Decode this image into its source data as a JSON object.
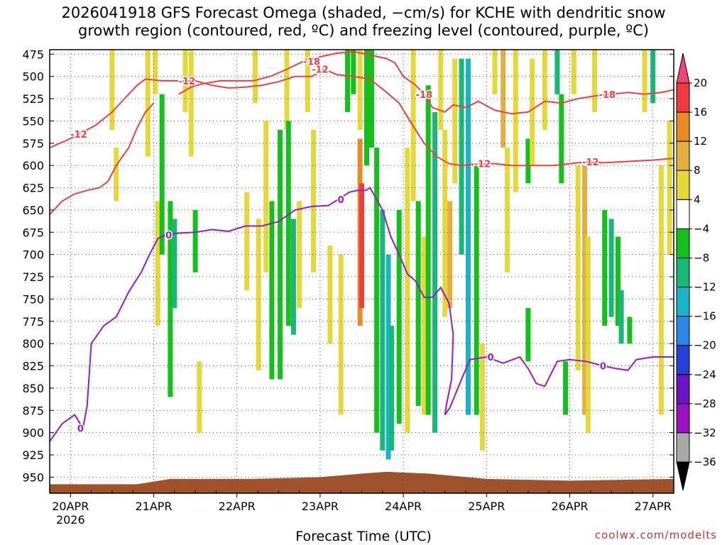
{
  "chart_data": {
    "type": "heatmap",
    "title_line1": "2026041918 GFS Forecast Omega (shaded, −cm/s) for KCHE with dendritic snow",
    "title_line2": "growth region (contoured, red, ºC) and freezing level (contoured, purple, ºC)",
    "xlabel": "Forecast Time (UTC)",
    "credit": "coolwx.com/modelts",
    "x_ticks": [
      {
        "label": "20APR",
        "sub": "2026",
        "day": 0
      },
      {
        "label": "21APR",
        "day": 1
      },
      {
        "label": "22APR",
        "day": 2
      },
      {
        "label": "23APR",
        "day": 3
      },
      {
        "label": "24APR",
        "day": 4
      },
      {
        "label": "25APR",
        "day": 5
      },
      {
        "label": "26APR",
        "day": 6
      },
      {
        "label": "27APR",
        "day": 7
      }
    ],
    "x_range_days": [
      -0.25,
      7.25
    ],
    "y_ticks": [
      475,
      500,
      525,
      550,
      575,
      600,
      625,
      650,
      675,
      700,
      725,
      750,
      775,
      800,
      825,
      850,
      875,
      900,
      925,
      950
    ],
    "y_range_hpa": [
      470,
      968
    ],
    "grid": true,
    "colorbar": {
      "labels": [
        "20",
        "16",
        "12",
        "8",
        "4",
        "−4",
        "−8",
        "−12",
        "−16",
        "−20",
        "−24",
        "−28",
        "−32",
        "−36"
      ],
      "colors": [
        "#f0447a",
        "#ee3c3c",
        "#e98a24",
        "#e3b040",
        "#e5d83a",
        "#ffffff",
        "#12c21a",
        "#18b878",
        "#1ab4c8",
        "#2a86e8",
        "#2442d8",
        "#6a14c8",
        "#9812c0",
        "#a8a8a8",
        "#000000"
      ]
    },
    "omega_regions": [
      {
        "t": 0.5,
        "p": [
          470,
          560
        ],
        "v": 5
      },
      {
        "t": 0.55,
        "p": [
          580,
          640
        ],
        "v": 5
      },
      {
        "t": 0.93,
        "p": [
          470,
          590
        ],
        "v": 5
      },
      {
        "t": 1.02,
        "p": [
          470,
          520
        ],
        "v": 6
      },
      {
        "t": 1.05,
        "p": [
          640,
          780
        ],
        "v": 5
      },
      {
        "t": 1.1,
        "p": [
          520,
          700
        ],
        "v": -6
      },
      {
        "t": 1.2,
        "p": [
          640,
          860
        ],
        "v": -7
      },
      {
        "t": 1.25,
        "p": [
          660,
          760
        ],
        "v": -9
      },
      {
        "t": 1.38,
        "p": [
          470,
          540
        ],
        "v": 5
      },
      {
        "t": 1.45,
        "p": [
          470,
          590
        ],
        "v": 6
      },
      {
        "t": 1.5,
        "p": [
          650,
          720
        ],
        "v": -6
      },
      {
        "t": 1.55,
        "p": [
          820,
          900
        ],
        "v": 5
      },
      {
        "t": 2.12,
        "p": [
          630,
          740
        ],
        "v": 6
      },
      {
        "t": 2.22,
        "p": [
          470,
          530
        ],
        "v": 5
      },
      {
        "t": 2.26,
        "p": [
          660,
          830
        ],
        "v": 6
      },
      {
        "t": 2.35,
        "p": [
          550,
          720
        ],
        "v": 6
      },
      {
        "t": 2.42,
        "p": [
          640,
          840
        ],
        "v": -6
      },
      {
        "t": 2.52,
        "p": [
          560,
          840
        ],
        "v": -7
      },
      {
        "t": 2.6,
        "p": [
          470,
          560
        ],
        "v": 5
      },
      {
        "t": 2.62,
        "p": [
          550,
          780
        ],
        "v": -7
      },
      {
        "t": 2.68,
        "p": [
          660,
          790
        ],
        "v": -9
      },
      {
        "t": 2.75,
        "p": [
          640,
          760
        ],
        "v": 5
      },
      {
        "t": 2.85,
        "p": [
          470,
          540
        ],
        "v": 5
      },
      {
        "t": 2.92,
        "p": [
          560,
          720
        ],
        "v": 6
      },
      {
        "t": 3.12,
        "p": [
          690,
          800
        ],
        "v": 5
      },
      {
        "t": 3.25,
        "p": [
          700,
          880
        ],
        "v": 5
      },
      {
        "t": 3.33,
        "p": [
          470,
          540
        ],
        "v": -6
      },
      {
        "t": 3.4,
        "p": [
          470,
          520
        ],
        "v": -6
      },
      {
        "t": 3.48,
        "p": [
          470,
          560
        ],
        "v": 5
      },
      {
        "t": 3.48,
        "p": [
          570,
          780
        ],
        "v": 14
      },
      {
        "t": 3.5,
        "p": [
          620,
          760
        ],
        "v": 18
      },
      {
        "t": 3.56,
        "p": [
          470,
          600
        ],
        "v": -7
      },
      {
        "t": 3.62,
        "p": [
          470,
          580
        ],
        "v": -6
      },
      {
        "t": 3.68,
        "p": [
          580,
          900
        ],
        "v": -7
      },
      {
        "t": 3.75,
        "p": [
          650,
          920
        ],
        "v": -8
      },
      {
        "t": 3.82,
        "p": [
          700,
          930
        ],
        "v": -14
      },
      {
        "t": 3.86,
        "p": [
          780,
          920
        ],
        "v": -10
      },
      {
        "t": 3.95,
        "p": [
          650,
          890
        ],
        "v": -7
      },
      {
        "t": 4.05,
        "p": [
          580,
          900
        ],
        "v": 5
      },
      {
        "t": 4.12,
        "p": [
          470,
          640
        ],
        "v": 5
      },
      {
        "t": 4.18,
        "p": [
          640,
          870
        ],
        "v": -7
      },
      {
        "t": 4.25,
        "p": [
          680,
          880
        ],
        "v": 6
      },
      {
        "t": 4.3,
        "p": [
          510,
          880
        ],
        "v": -7
      },
      {
        "t": 4.38,
        "p": [
          540,
          900
        ],
        "v": -8
      },
      {
        "t": 4.45,
        "p": [
          470,
          560
        ],
        "v": 6
      },
      {
        "t": 4.5,
        "p": [
          560,
          770
        ],
        "v": 5
      },
      {
        "t": 4.56,
        "p": [
          640,
          760
        ],
        "v": 8
      },
      {
        "t": 4.62,
        "p": [
          480,
          620
        ],
        "v": 5
      },
      {
        "t": 4.7,
        "p": [
          480,
          700
        ],
        "v": -10
      },
      {
        "t": 4.78,
        "p": [
          480,
          880
        ],
        "v": -12
      },
      {
        "t": 4.88,
        "p": [
          600,
          880
        ],
        "v": -7
      },
      {
        "t": 4.95,
        "p": [
          800,
          920
        ],
        "v": 5
      },
      {
        "t": 5.1,
        "p": [
          470,
          520
        ],
        "v": 5
      },
      {
        "t": 5.2,
        "p": [
          470,
          580
        ],
        "v": 10
      },
      {
        "t": 5.25,
        "p": [
          580,
          720
        ],
        "v": 5
      },
      {
        "t": 5.35,
        "p": [
          470,
          630
        ],
        "v": 5
      },
      {
        "t": 5.5,
        "p": [
          570,
          620
        ],
        "v": -7
      },
      {
        "t": 5.5,
        "p": [
          760,
          820
        ],
        "v": -6
      },
      {
        "t": 5.55,
        "p": [
          480,
          600
        ],
        "v": 5
      },
      {
        "t": 5.7,
        "p": [
          470,
          560
        ],
        "v": 5
      },
      {
        "t": 5.85,
        "p": [
          470,
          520
        ],
        "v": -10
      },
      {
        "t": 5.9,
        "p": [
          520,
          620
        ],
        "v": -6
      },
      {
        "t": 5.95,
        "p": [
          820,
          880
        ],
        "v": -6
      },
      {
        "t": 6.05,
        "p": [
          470,
          520
        ],
        "v": 5
      },
      {
        "t": 6.1,
        "p": [
          600,
          830
        ],
        "v": 6
      },
      {
        "t": 6.18,
        "p": [
          600,
          880
        ],
        "v": 10
      },
      {
        "t": 6.22,
        "p": [
          680,
          900
        ],
        "v": 6
      },
      {
        "t": 6.3,
        "p": [
          470,
          540
        ],
        "v": 5
      },
      {
        "t": 6.42,
        "p": [
          650,
          780
        ],
        "v": -7
      },
      {
        "t": 6.5,
        "p": [
          660,
          770
        ],
        "v": -8
      },
      {
        "t": 6.58,
        "p": [
          680,
          780
        ],
        "v": -7
      },
      {
        "t": 6.62,
        "p": [
          740,
          800
        ],
        "v": -9
      },
      {
        "t": 6.72,
        "p": [
          770,
          800
        ],
        "v": -7
      },
      {
        "t": 6.9,
        "p": [
          470,
          540
        ],
        "v": 5
      },
      {
        "t": 7.0,
        "p": [
          470,
          530
        ],
        "v": -10
      },
      {
        "t": 7.1,
        "p": [
          600,
          880
        ],
        "v": 5
      },
      {
        "t": 7.2,
        "p": [
          550,
          700
        ],
        "v": 5
      }
    ],
    "contours": [
      {
        "label": "-18",
        "color": "#ee4040",
        "label_at": [
          2.9,
          4.25,
          6.45
        ],
        "points": [
          [
            1.3,
            520
          ],
          [
            1.45,
            512
          ],
          [
            1.6,
            508
          ],
          [
            1.8,
            505
          ],
          [
            2.0,
            505
          ],
          [
            2.2,
            505
          ],
          [
            2.4,
            500
          ],
          [
            2.6,
            492
          ],
          [
            2.8,
            483
          ],
          [
            3.0,
            478
          ],
          [
            3.2,
            474
          ],
          [
            3.4,
            472
          ],
          [
            3.6,
            476
          ],
          [
            3.8,
            480
          ],
          [
            3.9,
            485
          ],
          [
            4.0,
            500
          ],
          [
            4.15,
            510
          ],
          [
            4.25,
            520
          ],
          [
            4.35,
            535
          ],
          [
            4.5,
            540
          ],
          [
            4.6,
            532
          ],
          [
            4.75,
            535
          ],
          [
            4.9,
            528
          ],
          [
            5.1,
            538
          ],
          [
            5.3,
            542
          ],
          [
            5.5,
            540
          ],
          [
            5.7,
            528
          ],
          [
            5.9,
            530
          ],
          [
            6.1,
            525
          ],
          [
            6.3,
            522
          ],
          [
            6.5,
            520
          ],
          [
            6.7,
            518
          ],
          [
            6.9,
            520
          ],
          [
            7.1,
            518
          ],
          [
            7.25,
            515
          ]
        ]
      },
      {
        "label": "-12",
        "color": "#ee4040",
        "label_at": [
          0.1,
          1.4,
          3.0,
          4.95,
          6.25
        ],
        "points": [
          [
            -0.25,
            580
          ],
          [
            -0.05,
            572
          ],
          [
            0.1,
            565
          ],
          [
            0.3,
            555
          ],
          [
            0.5,
            540
          ],
          [
            0.65,
            525
          ],
          [
            0.8,
            510
          ],
          [
            0.9,
            503
          ],
          [
            1.1,
            505
          ],
          [
            1.3,
            505
          ],
          [
            1.5,
            505
          ],
          [
            1.7,
            510
          ],
          [
            1.9,
            513
          ],
          [
            2.1,
            512
          ],
          [
            2.3,
            510
          ],
          [
            2.5,
            506
          ],
          [
            2.7,
            500
          ],
          [
            2.9,
            500
          ],
          [
            3.05,
            492
          ],
          [
            3.2,
            498
          ],
          [
            3.4,
            500
          ],
          [
            3.6,
            503
          ],
          [
            3.8,
            518
          ],
          [
            3.95,
            530
          ],
          [
            4.1,
            553
          ],
          [
            4.25,
            575
          ],
          [
            4.4,
            590
          ],
          [
            4.55,
            598
          ],
          [
            4.7,
            600
          ],
          [
            4.9,
            598
          ],
          [
            5.1,
            598
          ],
          [
            5.3,
            600
          ],
          [
            5.55,
            600
          ],
          [
            5.8,
            600
          ],
          [
            6.0,
            598
          ],
          [
            6.2,
            596
          ],
          [
            6.4,
            597
          ],
          [
            6.6,
            596
          ],
          [
            6.8,
            595
          ],
          [
            7.0,
            594
          ],
          [
            7.25,
            592
          ]
        ]
      },
      {
        "label": "-12",
        "color": "#ee4040",
        "label_at": [],
        "points": [
          [
            -0.25,
            655
          ],
          [
            -0.1,
            640
          ],
          [
            0.05,
            632
          ],
          [
            0.2,
            628
          ],
          [
            0.35,
            625
          ],
          [
            0.45,
            618
          ],
          [
            0.55,
            600
          ],
          [
            0.7,
            580
          ],
          [
            0.8,
            558
          ],
          [
            0.9,
            540
          ],
          [
            1.0,
            530
          ]
        ]
      },
      {
        "label": "0",
        "color": "#9a1ac8",
        "label_at": [
          0.12,
          1.18,
          3.25,
          5.05,
          6.4
        ],
        "points": [
          [
            -0.25,
            910
          ],
          [
            -0.1,
            890
          ],
          [
            0.05,
            880
          ],
          [
            0.15,
            895
          ],
          [
            0.2,
            870
          ],
          [
            0.25,
            800
          ],
          [
            0.4,
            780
          ],
          [
            0.55,
            770
          ],
          [
            0.7,
            742
          ],
          [
            0.85,
            720
          ],
          [
            0.95,
            700
          ],
          [
            1.05,
            682
          ],
          [
            1.15,
            678
          ],
          [
            1.3,
            676
          ],
          [
            1.5,
            675
          ],
          [
            1.7,
            672
          ],
          [
            1.9,
            674
          ],
          [
            2.1,
            668
          ],
          [
            2.3,
            668
          ],
          [
            2.5,
            663
          ],
          [
            2.7,
            650
          ],
          [
            2.9,
            646
          ],
          [
            3.1,
            645
          ],
          [
            3.22,
            638
          ],
          [
            3.35,
            630
          ],
          [
            3.45,
            628
          ],
          [
            3.55,
            628
          ],
          [
            3.6,
            625
          ],
          [
            3.75,
            650
          ],
          [
            3.85,
            680
          ],
          [
            3.95,
            700
          ],
          [
            4.05,
            722
          ],
          [
            4.15,
            730
          ],
          [
            4.25,
            748
          ],
          [
            4.35,
            748
          ],
          [
            4.45,
            737
          ],
          [
            4.55,
            755
          ],
          [
            4.6,
            790
          ],
          [
            4.58,
            840
          ],
          [
            4.52,
            868
          ],
          [
            4.5,
            880
          ],
          [
            4.56,
            872
          ],
          [
            4.7,
            840
          ],
          [
            4.8,
            818
          ],
          [
            5.0,
            815
          ],
          [
            5.2,
            822
          ],
          [
            5.4,
            815
          ],
          [
            5.5,
            828
          ],
          [
            5.6,
            845
          ],
          [
            5.7,
            848
          ],
          [
            5.85,
            820
          ],
          [
            6.0,
            818
          ],
          [
            6.2,
            820
          ],
          [
            6.4,
            825
          ],
          [
            6.55,
            828
          ],
          [
            6.7,
            830
          ],
          [
            6.8,
            818
          ],
          [
            7.0,
            815
          ],
          [
            7.25,
            815
          ]
        ]
      }
    ]
  }
}
